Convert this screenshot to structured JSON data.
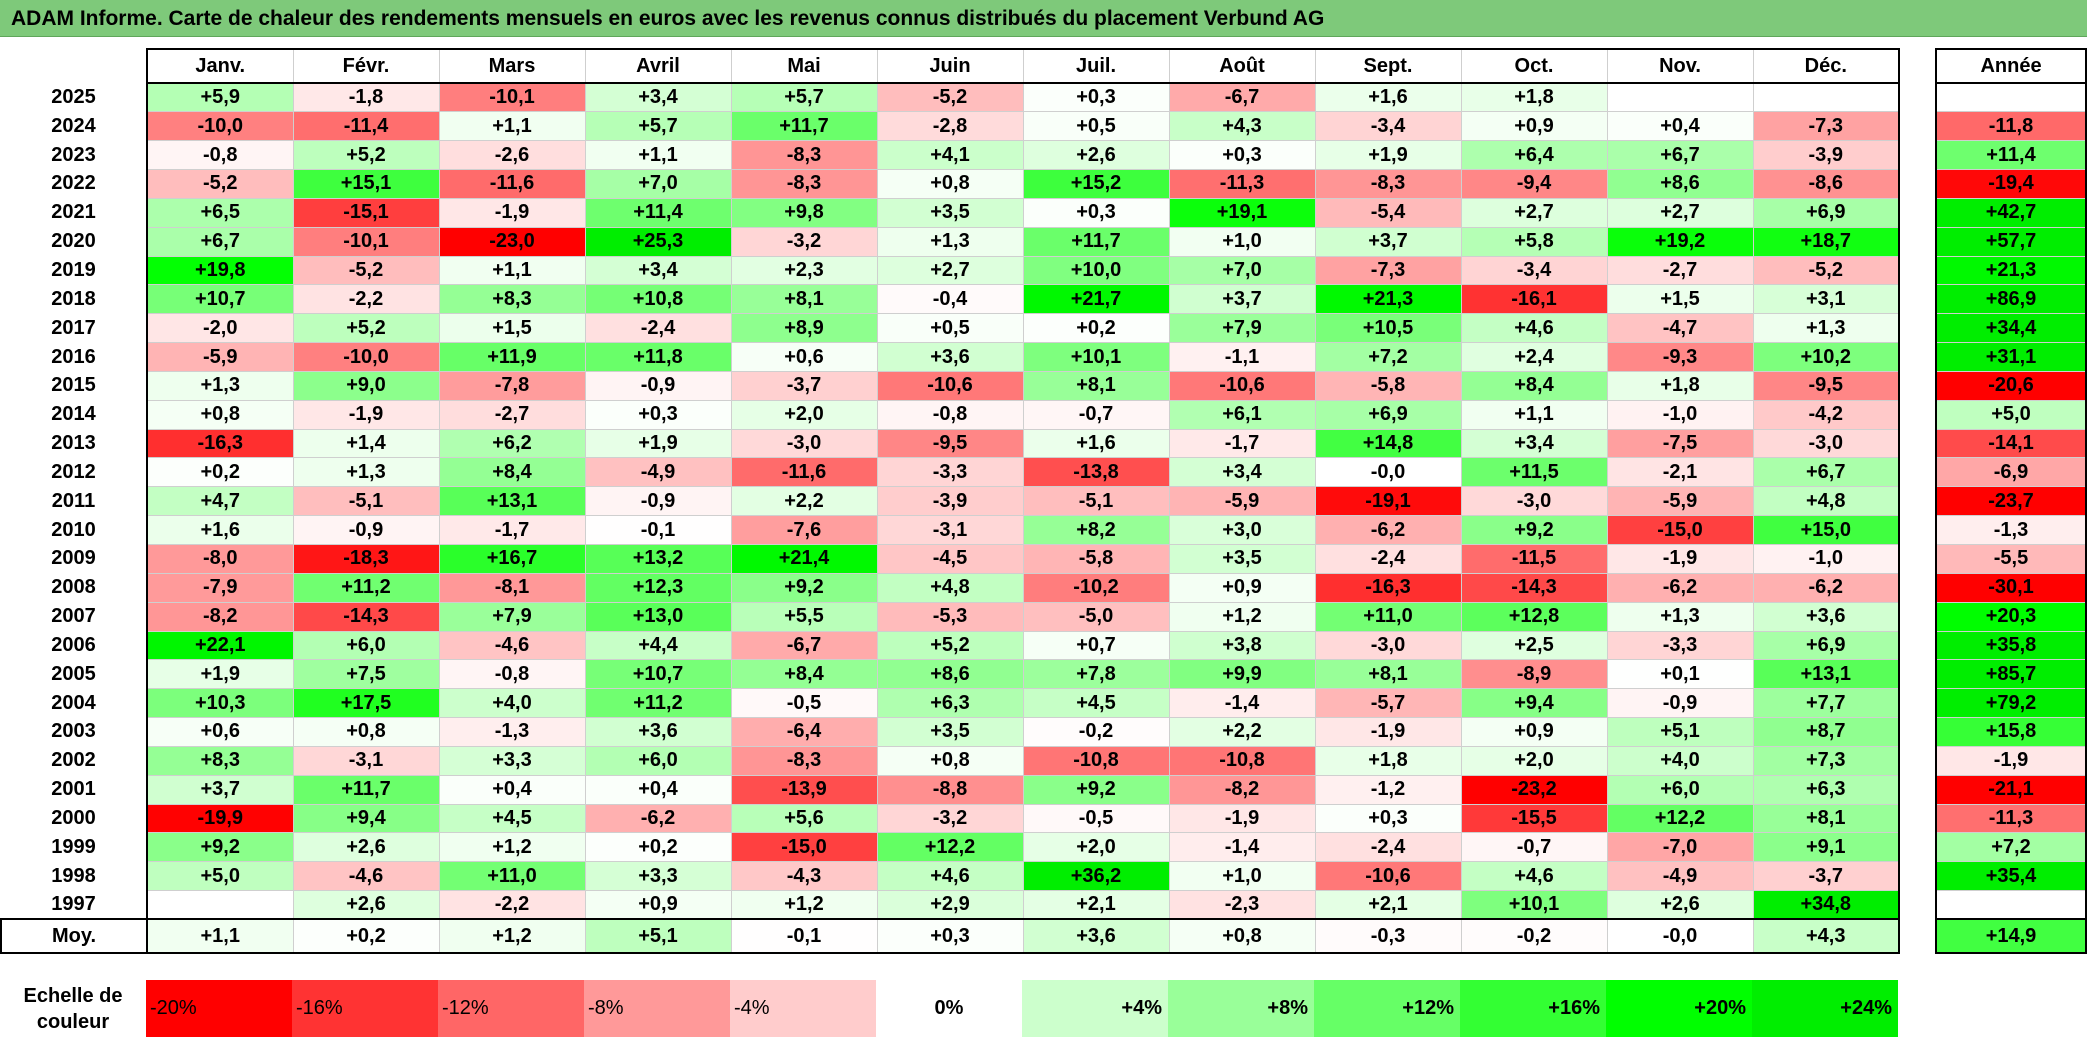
{
  "title": "ADAM Informe. Carte de chaleur des rendements mensuels en euros avec les revenus connus distribués du placement Verbund AG",
  "chart_data": {
    "type": "heatmap",
    "columns": [
      "Janv.",
      "Févr.",
      "Mars",
      "Avril",
      "Mai",
      "Juin",
      "Juil.",
      "Août",
      "Sept.",
      "Oct.",
      "Nov.",
      "Déc."
    ],
    "year_header": "Année",
    "rows": [
      {
        "year": "2025",
        "values": [
          "+5,9",
          "-1,8",
          "-10,1",
          "+3,4",
          "+5,7",
          "-5,2",
          "+0,3",
          "-6,7",
          "+1,6",
          "+1,8",
          "",
          ""
        ],
        "annual": ""
      },
      {
        "year": "2024",
        "values": [
          "-10,0",
          "-11,4",
          "+1,1",
          "+5,7",
          "+11,7",
          "-2,8",
          "+0,5",
          "+4,3",
          "-3,4",
          "+0,9",
          "+0,4",
          "-7,3"
        ],
        "annual": "-11,8"
      },
      {
        "year": "2023",
        "values": [
          "-0,8",
          "+5,2",
          "-2,6",
          "+1,1",
          "-8,3",
          "+4,1",
          "+2,6",
          "+0,3",
          "+1,9",
          "+6,4",
          "+6,7",
          "-3,9"
        ],
        "annual": "+11,4"
      },
      {
        "year": "2022",
        "values": [
          "-5,2",
          "+15,1",
          "-11,6",
          "+7,0",
          "-8,3",
          "+0,8",
          "+15,2",
          "-11,3",
          "-8,3",
          "-9,4",
          "+8,6",
          "-8,6"
        ],
        "annual": "-19,4"
      },
      {
        "year": "2021",
        "values": [
          "+6,5",
          "-15,1",
          "-1,9",
          "+11,4",
          "+9,8",
          "+3,5",
          "+0,3",
          "+19,1",
          "-5,4",
          "+2,7",
          "+2,7",
          "+6,9"
        ],
        "annual": "+42,7"
      },
      {
        "year": "2020",
        "values": [
          "+6,7",
          "-10,1",
          "-23,0",
          "+25,3",
          "-3,2",
          "+1,3",
          "+11,7",
          "+1,0",
          "+3,7",
          "+5,8",
          "+19,2",
          "+18,7"
        ],
        "annual": "+57,7"
      },
      {
        "year": "2019",
        "values": [
          "+19,8",
          "-5,2",
          "+1,1",
          "+3,4",
          "+2,3",
          "+2,7",
          "+10,0",
          "+7,0",
          "-7,3",
          "-3,4",
          "-2,7",
          "-5,2"
        ],
        "annual": "+21,3"
      },
      {
        "year": "2018",
        "values": [
          "+10,7",
          "-2,2",
          "+8,3",
          "+10,8",
          "+8,1",
          "-0,4",
          "+21,7",
          "+3,7",
          "+21,3",
          "-16,1",
          "+1,5",
          "+3,1"
        ],
        "annual": "+86,9"
      },
      {
        "year": "2017",
        "values": [
          "-2,0",
          "+5,2",
          "+1,5",
          "-2,4",
          "+8,9",
          "+0,5",
          "+0,2",
          "+7,9",
          "+10,5",
          "+4,6",
          "-4,7",
          "+1,3"
        ],
        "annual": "+34,4"
      },
      {
        "year": "2016",
        "values": [
          "-5,9",
          "-10,0",
          "+11,9",
          "+11,8",
          "+0,6",
          "+3,6",
          "+10,1",
          "-1,1",
          "+7,2",
          "+2,4",
          "-9,3",
          "+10,2"
        ],
        "annual": "+31,1"
      },
      {
        "year": "2015",
        "values": [
          "+1,3",
          "+9,0",
          "-7,8",
          "-0,9",
          "-3,7",
          "-10,6",
          "+8,1",
          "-10,6",
          "-5,8",
          "+8,4",
          "+1,8",
          "-9,5"
        ],
        "annual": "-20,6"
      },
      {
        "year": "2014",
        "values": [
          "+0,8",
          "-1,9",
          "-2,7",
          "+0,3",
          "+2,0",
          "-0,8",
          "-0,7",
          "+6,1",
          "+6,9",
          "+1,1",
          "-1,0",
          "-4,2"
        ],
        "annual": "+5,0"
      },
      {
        "year": "2013",
        "values": [
          "-16,3",
          "+1,4",
          "+6,2",
          "+1,9",
          "-3,0",
          "-9,5",
          "+1,6",
          "-1,7",
          "+14,8",
          "+3,4",
          "-7,5",
          "-3,0"
        ],
        "annual": "-14,1"
      },
      {
        "year": "2012",
        "values": [
          "+0,2",
          "+1,3",
          "+8,4",
          "-4,9",
          "-11,6",
          "-3,3",
          "-13,8",
          "+3,4",
          "-0,0",
          "+11,5",
          "-2,1",
          "+6,7"
        ],
        "annual": "-6,9"
      },
      {
        "year": "2011",
        "values": [
          "+4,7",
          "-5,1",
          "+13,1",
          "-0,9",
          "+2,2",
          "-3,9",
          "-5,1",
          "-5,9",
          "-19,1",
          "-3,0",
          "-5,9",
          "+4,8"
        ],
        "annual": "-23,7"
      },
      {
        "year": "2010",
        "values": [
          "+1,6",
          "-0,9",
          "-1,7",
          "-0,1",
          "-7,6",
          "-3,1",
          "+8,2",
          "+3,0",
          "-6,2",
          "+9,2",
          "-15,0",
          "+15,0"
        ],
        "annual": "-1,3"
      },
      {
        "year": "2009",
        "values": [
          "-8,0",
          "-18,3",
          "+16,7",
          "+13,2",
          "+21,4",
          "-4,5",
          "-5,8",
          "+3,5",
          "-2,4",
          "-11,5",
          "-1,9",
          "-1,0"
        ],
        "annual": "-5,5"
      },
      {
        "year": "2008",
        "values": [
          "-7,9",
          "+11,2",
          "-8,1",
          "+12,3",
          "+9,2",
          "+4,8",
          "-10,2",
          "+0,9",
          "-16,3",
          "-14,3",
          "-6,2",
          "-6,2"
        ],
        "annual": "-30,1"
      },
      {
        "year": "2007",
        "values": [
          "-8,2",
          "-14,3",
          "+7,9",
          "+13,0",
          "+5,5",
          "-5,3",
          "-5,0",
          "+1,2",
          "+11,0",
          "+12,8",
          "+1,3",
          "+3,6"
        ],
        "annual": "+20,3"
      },
      {
        "year": "2006",
        "values": [
          "+22,1",
          "+6,0",
          "-4,6",
          "+4,4",
          "-6,7",
          "+5,2",
          "+0,7",
          "+3,8",
          "-3,0",
          "+2,5",
          "-3,3",
          "+6,9"
        ],
        "annual": "+35,8"
      },
      {
        "year": "2005",
        "values": [
          "+1,9",
          "+7,5",
          "-0,8",
          "+10,7",
          "+8,4",
          "+8,6",
          "+7,8",
          "+9,9",
          "+8,1",
          "-8,9",
          "+0,1",
          "+13,1"
        ],
        "annual": "+85,7"
      },
      {
        "year": "2004",
        "values": [
          "+10,3",
          "+17,5",
          "+4,0",
          "+11,2",
          "-0,5",
          "+6,3",
          "+4,5",
          "-1,4",
          "-5,7",
          "+9,4",
          "-0,9",
          "+7,7"
        ],
        "annual": "+79,2"
      },
      {
        "year": "2003",
        "values": [
          "+0,6",
          "+0,8",
          "-1,3",
          "+3,6",
          "-6,4",
          "+3,5",
          "-0,2",
          "+2,2",
          "-1,9",
          "+0,9",
          "+5,1",
          "+8,7"
        ],
        "annual": "+15,8"
      },
      {
        "year": "2002",
        "values": [
          "+8,3",
          "-3,1",
          "+3,3",
          "+6,0",
          "-8,3",
          "+0,8",
          "-10,8",
          "-10,8",
          "+1,8",
          "+2,0",
          "+4,0",
          "+7,3"
        ],
        "annual": "-1,9"
      },
      {
        "year": "2001",
        "values": [
          "+3,7",
          "+11,7",
          "+0,4",
          "+0,4",
          "-13,9",
          "-8,8",
          "+9,2",
          "-8,2",
          "-1,2",
          "-23,2",
          "+6,0",
          "+6,3"
        ],
        "annual": "-21,1"
      },
      {
        "year": "2000",
        "values": [
          "-19,9",
          "+9,4",
          "+4,5",
          "-6,2",
          "+5,6",
          "-3,2",
          "-0,5",
          "-1,9",
          "+0,3",
          "-15,5",
          "+12,2",
          "+8,1"
        ],
        "annual": "-11,3"
      },
      {
        "year": "1999",
        "values": [
          "+9,2",
          "+2,6",
          "+1,2",
          "+0,2",
          "-15,0",
          "+12,2",
          "+2,0",
          "-1,4",
          "-2,4",
          "-0,7",
          "-7,0",
          "+9,1"
        ],
        "annual": "+7,2"
      },
      {
        "year": "1998",
        "values": [
          "+5,0",
          "-4,6",
          "+11,0",
          "+3,3",
          "-4,3",
          "+4,6",
          "+36,2",
          "+1,0",
          "-10,6",
          "+4,6",
          "-4,9",
          "-3,7"
        ],
        "annual": "+35,4"
      },
      {
        "year": "1997",
        "values": [
          "",
          "+2,6",
          "-2,2",
          "+0,9",
          "+1,2",
          "+2,9",
          "+2,1",
          "-2,3",
          "+2,1",
          "+10,1",
          "+2,6",
          "+34,8"
        ],
        "annual": ""
      }
    ],
    "average": {
      "label": "Moy.",
      "values": [
        "+1,1",
        "+0,2",
        "+1,2",
        "+5,1",
        "-0,1",
        "+0,3",
        "+3,6",
        "+0,8",
        "-0,3",
        "-0,2",
        "-0,0",
        "+4,3"
      ],
      "annual": "+14,9"
    },
    "scale": {
      "label": "Echelle de couleur",
      "steps": [
        {
          "label": "-20%",
          "value": -20,
          "color": "#ff0000"
        },
        {
          "label": "-16%",
          "value": -16,
          "color": "#ff3333"
        },
        {
          "label": "-12%",
          "value": -12,
          "color": "#ff6666"
        },
        {
          "label": "-8%",
          "value": -8,
          "color": "#ff9999"
        },
        {
          "label": "-4%",
          "value": -4,
          "color": "#ffcccc"
        },
        {
          "label": "0%",
          "value": 0,
          "color": "#ffffff"
        },
        {
          "label": "+4%",
          "value": 4,
          "color": "#ccffcc"
        },
        {
          "label": "+8%",
          "value": 8,
          "color": "#99ff99"
        },
        {
          "label": "+12%",
          "value": 12,
          "color": "#66ff66"
        },
        {
          "label": "+16%",
          "value": 16,
          "color": "#33ff33"
        },
        {
          "label": "+20%",
          "value": 20,
          "color": "#00ff00"
        },
        {
          "label": "+24%",
          "value": 24,
          "color": "#00ee00"
        }
      ]
    }
  }
}
